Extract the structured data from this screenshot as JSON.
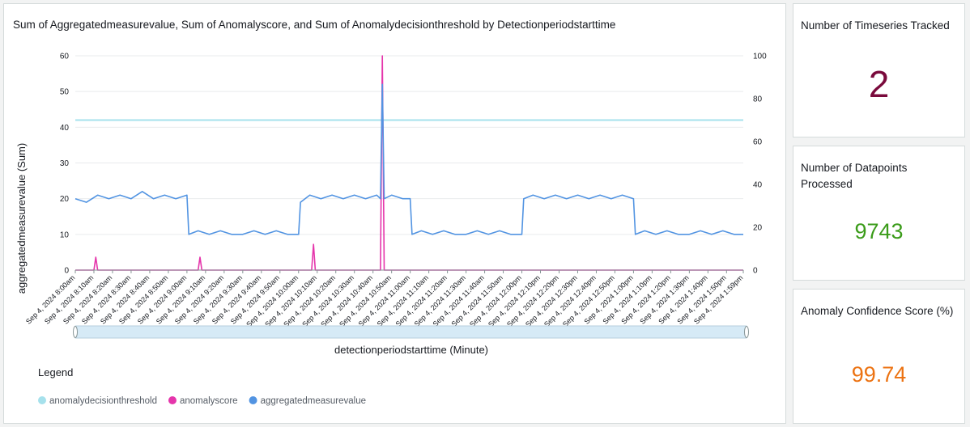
{
  "chart_card": {
    "title": "Sum of Aggregatedmeasurevalue, Sum of Anomalyscore, and Sum of Anomalydecisionthreshold by Detectionperiodstarttime"
  },
  "chart_data": {
    "type": "line",
    "title": "Sum of Aggregatedmeasurevalue, Sum of Anomalyscore, and Sum of Anomalydecisionthreshold by Detectionperiodstarttime",
    "xlabel": "detectionperiodstarttime (Minute)",
    "ylabel": "aggregatedmeasurevalue (Sum)",
    "ylim": [
      0,
      60
    ],
    "y_ticks": [
      0,
      10,
      20,
      30,
      40,
      50,
      60
    ],
    "y2lim": [
      0,
      100
    ],
    "y2_ticks": [
      0,
      20,
      40,
      60,
      80,
      100
    ],
    "x_tick_labels": [
      "Sep 4, 2024 8:00am",
      "Sep 4, 2024 8:10am",
      "Sep 4, 2024 8:20am",
      "Sep 4, 2024 8:30am",
      "Sep 4, 2024 8:40am",
      "Sep 4, 2024 8:50am",
      "Sep 4, 2024 9:00am",
      "Sep 4, 2024 9:10am",
      "Sep 4, 2024 9:20am",
      "Sep 4, 2024 9:30am",
      "Sep 4, 2024 9:40am",
      "Sep 4, 2024 9:50am",
      "Sep 4, 2024 10:00am",
      "Sep 4, 2024 10:10am",
      "Sep 4, 2024 10:20am",
      "Sep 4, 2024 10:30am",
      "Sep 4, 2024 10:40am",
      "Sep 4, 2024 10:50am",
      "Sep 4, 2024 11:00am",
      "Sep 4, 2024 11:10am",
      "Sep 4, 2024 11:20am",
      "Sep 4, 2024 11:30am",
      "Sep 4, 2024 11:40am",
      "Sep 4, 2024 11:50am",
      "Sep 4, 2024 12:00pm",
      "Sep 4, 2024 12:10pm",
      "Sep 4, 2024 12:20pm",
      "Sep 4, 2024 12:30pm",
      "Sep 4, 2024 12:40pm",
      "Sep 4, 2024 12:50pm",
      "Sep 4, 2024 1:00pm",
      "Sep 4, 2024 1:10pm",
      "Sep 4, 2024 1:20pm",
      "Sep 4, 2024 1:30pm",
      "Sep 4, 2024 1:40pm",
      "Sep 4, 2024 1:50pm",
      "Sep 4, 2024 1:59pm"
    ],
    "grid": true,
    "legend_position": "bottom-left",
    "legend_title": "Legend",
    "series": [
      {
        "name": "anomalydecisionthreshold",
        "axis": "right",
        "color": "#a6e1ec",
        "x": [
          "Sep 4, 2024 8:00am",
          "Sep 4, 2024 1:59pm"
        ],
        "values": [
          70,
          70
        ]
      },
      {
        "name": "anomalyscore",
        "axis": "right",
        "color": "#e535ab",
        "x": [
          "Sep 4, 2024 8:00am",
          "Sep 4, 2024 8:10am",
          "Sep 4, 2024 8:11am",
          "Sep 4, 2024 8:12am",
          "Sep 4, 2024 9:00am",
          "Sep 4, 2024 9:06am",
          "Sep 4, 2024 9:07am",
          "Sep 4, 2024 9:08am",
          "Sep 4, 2024 10:00am",
          "Sep 4, 2024 10:07am",
          "Sep 4, 2024 10:08am",
          "Sep 4, 2024 10:09am",
          "Sep 4, 2024 10:30am",
          "Sep 4, 2024 10:44am",
          "Sep 4, 2024 10:45am",
          "Sep 4, 2024 10:46am",
          "Sep 4, 2024 11:00am",
          "Sep 4, 2024 12:00pm",
          "Sep 4, 2024 1:00pm",
          "Sep 4, 2024 1:59pm"
        ],
        "values": [
          0,
          0,
          6,
          0,
          0,
          0,
          6,
          0,
          0,
          0,
          12,
          0,
          0,
          0,
          100,
          0,
          0,
          0,
          0,
          0
        ]
      },
      {
        "name": "aggregatedmeasurevalue",
        "axis": "left",
        "color": "#5294e2",
        "x": [
          "Sep 4, 2024 8:00am",
          "Sep 4, 2024 8:06am",
          "Sep 4, 2024 8:12am",
          "Sep 4, 2024 8:18am",
          "Sep 4, 2024 8:24am",
          "Sep 4, 2024 8:30am",
          "Sep 4, 2024 8:36am",
          "Sep 4, 2024 8:42am",
          "Sep 4, 2024 8:48am",
          "Sep 4, 2024 8:54am",
          "Sep 4, 2024 9:00am",
          "Sep 4, 2024 9:01am",
          "Sep 4, 2024 9:06am",
          "Sep 4, 2024 9:12am",
          "Sep 4, 2024 9:18am",
          "Sep 4, 2024 9:24am",
          "Sep 4, 2024 9:30am",
          "Sep 4, 2024 9:36am",
          "Sep 4, 2024 9:42am",
          "Sep 4, 2024 9:48am",
          "Sep 4, 2024 9:54am",
          "Sep 4, 2024 10:00am",
          "Sep 4, 2024 10:01am",
          "Sep 4, 2024 10:06am",
          "Sep 4, 2024 10:12am",
          "Sep 4, 2024 10:18am",
          "Sep 4, 2024 10:24am",
          "Sep 4, 2024 10:30am",
          "Sep 4, 2024 10:36am",
          "Sep 4, 2024 10:42am",
          "Sep 4, 2024 10:44am",
          "Sep 4, 2024 10:45am",
          "Sep 4, 2024 10:46am",
          "Sep 4, 2024 10:50am",
          "Sep 4, 2024 10:56am",
          "Sep 4, 2024 11:00am",
          "Sep 4, 2024 11:01am",
          "Sep 4, 2024 11:06am",
          "Sep 4, 2024 11:12am",
          "Sep 4, 2024 11:18am",
          "Sep 4, 2024 11:24am",
          "Sep 4, 2024 11:30am",
          "Sep 4, 2024 11:36am",
          "Sep 4, 2024 11:42am",
          "Sep 4, 2024 11:48am",
          "Sep 4, 2024 11:54am",
          "Sep 4, 2024 12:00pm",
          "Sep 4, 2024 12:01pm",
          "Sep 4, 2024 12:06pm",
          "Sep 4, 2024 12:12pm",
          "Sep 4, 2024 12:18pm",
          "Sep 4, 2024 12:24pm",
          "Sep 4, 2024 12:30pm",
          "Sep 4, 2024 12:36pm",
          "Sep 4, 2024 12:42pm",
          "Sep 4, 2024 12:48pm",
          "Sep 4, 2024 12:54pm",
          "Sep 4, 2024 1:00pm",
          "Sep 4, 2024 1:01pm",
          "Sep 4, 2024 1:06pm",
          "Sep 4, 2024 1:12pm",
          "Sep 4, 2024 1:18pm",
          "Sep 4, 2024 1:24pm",
          "Sep 4, 2024 1:30pm",
          "Sep 4, 2024 1:36pm",
          "Sep 4, 2024 1:42pm",
          "Sep 4, 2024 1:48pm",
          "Sep 4, 2024 1:54pm",
          "Sep 4, 2024 1:59pm"
        ],
        "values": [
          20,
          19,
          21,
          20,
          21,
          20,
          22,
          20,
          21,
          20,
          21,
          10,
          11,
          10,
          11,
          10,
          10,
          11,
          10,
          11,
          10,
          10,
          19,
          21,
          20,
          21,
          20,
          21,
          20,
          21,
          20,
          52,
          20,
          21,
          20,
          20,
          10,
          11,
          10,
          11,
          10,
          10,
          11,
          10,
          11,
          10,
          10,
          20,
          21,
          20,
          21,
          20,
          21,
          20,
          21,
          20,
          21,
          20,
          10,
          11,
          10,
          11,
          10,
          10,
          11,
          10,
          11,
          10,
          10
        ]
      }
    ]
  },
  "kpis": [
    {
      "title": "Number of Timeseries Tracked",
      "value": "2"
    },
    {
      "title": "Number of Datapoints Processed",
      "value": "9743"
    },
    {
      "title": "Anomaly Confidence Score (%)",
      "value": "99.74"
    }
  ]
}
